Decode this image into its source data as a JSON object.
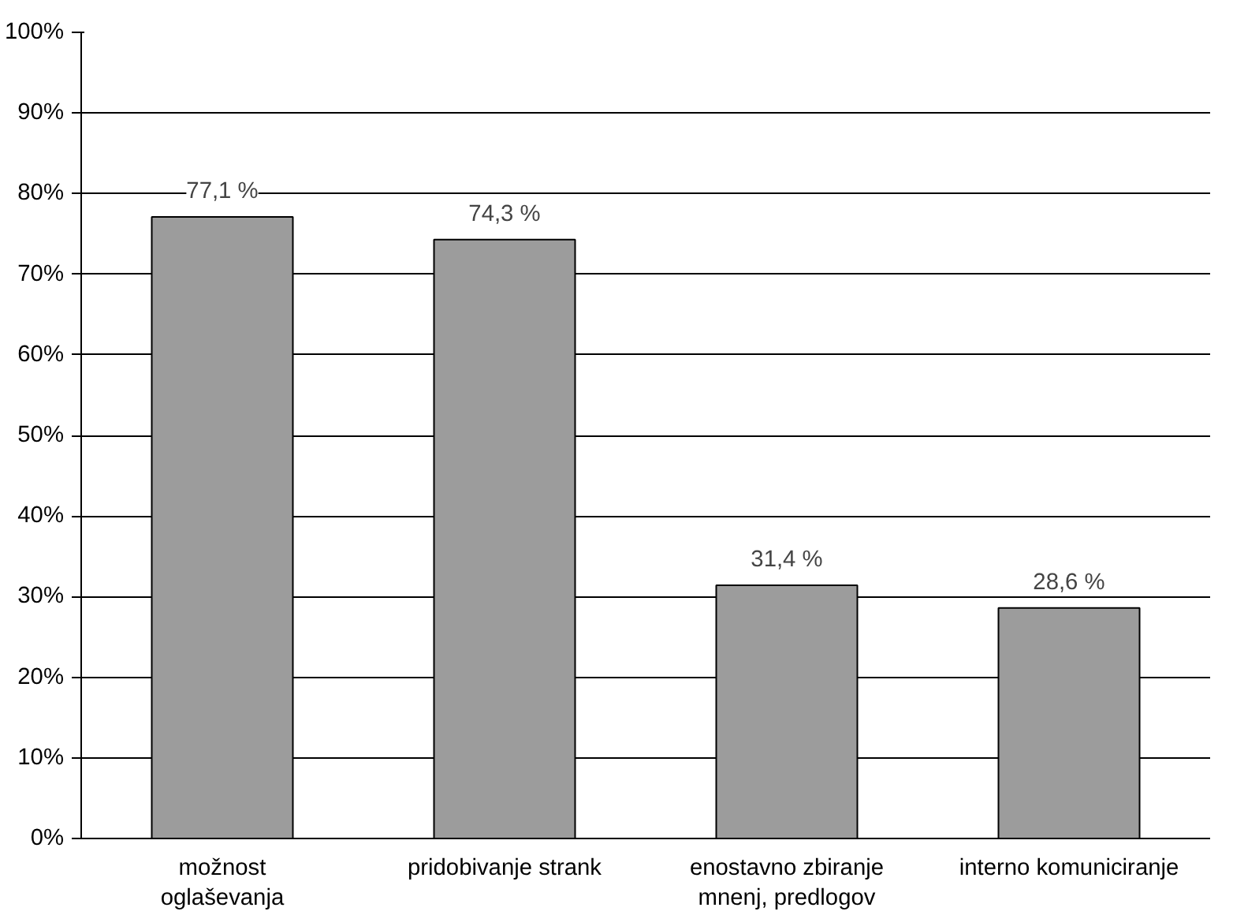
{
  "chart_data": {
    "type": "bar",
    "categories": [
      "možnost\noglaševanja",
      "pridobivanje strank",
      "enostavno zbiranje\nmnenj, predlogov",
      "interno komuniciranje"
    ],
    "values": [
      77.1,
      74.3,
      31.4,
      28.6
    ],
    "value_labels": [
      "77,1 %",
      "74,3 %",
      "31,4 %",
      "28,6 %"
    ],
    "color": "#9c9c9c",
    "ylim": [
      0,
      100
    ],
    "yticks": [
      {
        "value": 0,
        "label": "0%"
      },
      {
        "value": 10,
        "label": "10%"
      },
      {
        "value": 20,
        "label": "20%"
      },
      {
        "value": 30,
        "label": "30%"
      },
      {
        "value": 40,
        "label": "40%"
      },
      {
        "value": 50,
        "label": "50%"
      },
      {
        "value": 60,
        "label": "60%"
      },
      {
        "value": 70,
        "label": "70%"
      },
      {
        "value": 80,
        "label": "80%"
      },
      {
        "value": 90,
        "label": "90%"
      },
      {
        "value": 100,
        "label": "100%"
      }
    ],
    "grid": "y"
  }
}
